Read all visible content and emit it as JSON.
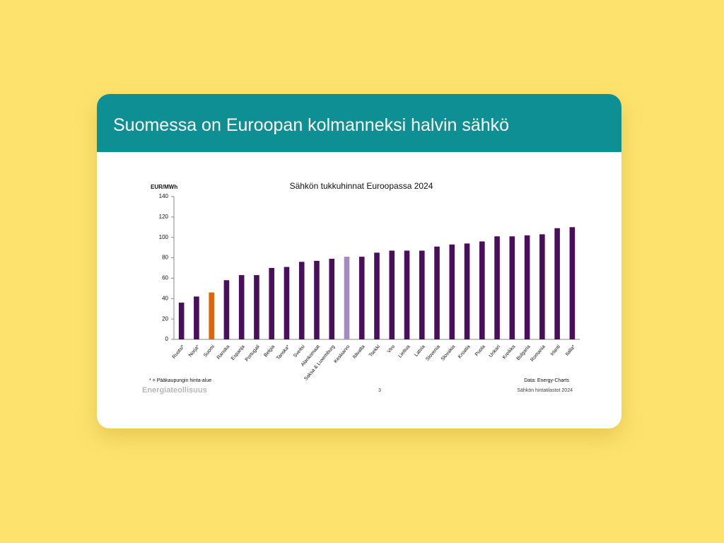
{
  "header": {
    "title": "Suomessa on Euroopan kolmanneksi halvin sähkö"
  },
  "chart_data": {
    "type": "bar",
    "title": "Sähkön tukkuhinnat Euroopassa 2024",
    "y_label": "EUR/MWh",
    "categories": [
      "Ruotsi*",
      "Norja*",
      "Suomi",
      "Ranska",
      "Espanja",
      "Portugali",
      "Belgia",
      "Tanska*",
      "Sveitsi",
      "Alankomaat",
      "Saksa & Luxemburg",
      "Keskiarvo",
      "Itävalta",
      "Tsekki",
      "Viro",
      "Liettua",
      "Latvia",
      "Slovenia",
      "Slovakia",
      "Kroatia",
      "Puola",
      "Unkari",
      "Kreikka",
      "Bulgaria",
      "Romania",
      "Irlanti",
      "Italia*"
    ],
    "values": [
      36,
      42,
      46,
      58,
      63,
      63,
      70,
      71,
      76,
      77,
      79,
      81,
      81,
      85,
      87,
      87,
      87,
      91,
      93,
      94,
      96,
      101,
      101,
      102,
      103,
      109,
      110
    ],
    "color": "#4a0f5c",
    "colors": [
      "#4a0f5c",
      "#4a0f5c",
      "#e0640c",
      "#4a0f5c",
      "#4a0f5c",
      "#4a0f5c",
      "#4a0f5c",
      "#4a0f5c",
      "#4a0f5c",
      "#4a0f5c",
      "#4a0f5c",
      "#a58bc4",
      "#4a0f5c",
      "#4a0f5c",
      "#4a0f5c",
      "#4a0f5c",
      "#4a0f5c",
      "#4a0f5c",
      "#4a0f5c",
      "#4a0f5c",
      "#4a0f5c",
      "#4a0f5c",
      "#4a0f5c",
      "#4a0f5c",
      "#4a0f5c",
      "#4a0f5c",
      "#4a0f5c"
    ],
    "ylim": [
      0,
      140
    ],
    "yticks": [
      0,
      20,
      40,
      60,
      80,
      100,
      120,
      140
    ],
    "grid": false,
    "footnote": "* = Pääkaupungin hinta-alue",
    "source": "Data: Energy-Charts"
  },
  "footer": {
    "brand": "Energiateollisuus",
    "page": "3",
    "caption": "Sähkön hintatilastot 2024"
  }
}
